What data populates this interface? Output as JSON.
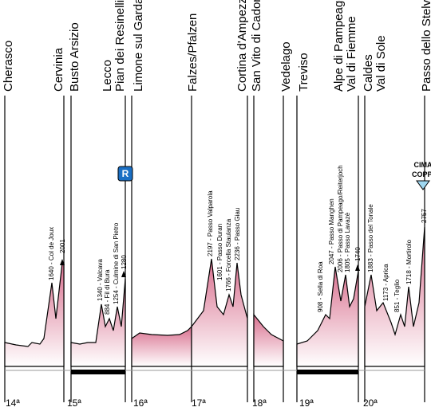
{
  "stages": [
    {
      "number": "14ª",
      "towns": [
        "Cherasco",
        "Cervinia"
      ]
    },
    {
      "number": "15ª",
      "towns": [
        "Busto Arsizio",
        "Lecco",
        "Pian dei Resinelli"
      ]
    },
    {
      "number": "16ª",
      "towns": [
        "Limone sul Garda",
        "Falzes/Pfalzen"
      ]
    },
    {
      "number": "17ª",
      "towns": [
        "Cortina d'Ampezzo"
      ]
    },
    {
      "number": "18ª",
      "towns": [
        "San Vito di Cadore",
        "Vedelago"
      ]
    },
    {
      "number": "19ª",
      "towns": [
        "Treviso",
        "Alpe di Pampeago",
        "Val di Fiemme"
      ]
    },
    {
      "number": "20ª",
      "towns": [
        "Caldes",
        "Val di Sole",
        "Passo dello Stelvio"
      ]
    }
  ],
  "climbs": [
    "1640 - Col de Joux",
    "2001",
    "1340 - Valcava",
    "884 - Fil di Bura",
    "1254 - Culmine di San Pietro",
    "1280",
    "2197 - Passo Valparola",
    "1601 - Passo Duran",
    "1766 - Forcella Staulanza",
    "2236 - Passo Giau",
    "908 - Sella di Roa",
    "2047 - Passo Manghen",
    "2006 - Passo di Pampeago/Reiterjoch",
    "1805 - Passo Lavazè",
    "1740",
    "1883 - Passo del Tonale",
    "1173 - Aprica",
    "851 - Teglio",
    "1718 - Mortirolo",
    "2757"
  ],
  "badge": "R",
  "cima": [
    "CIMA",
    "COPPI"
  ]
}
